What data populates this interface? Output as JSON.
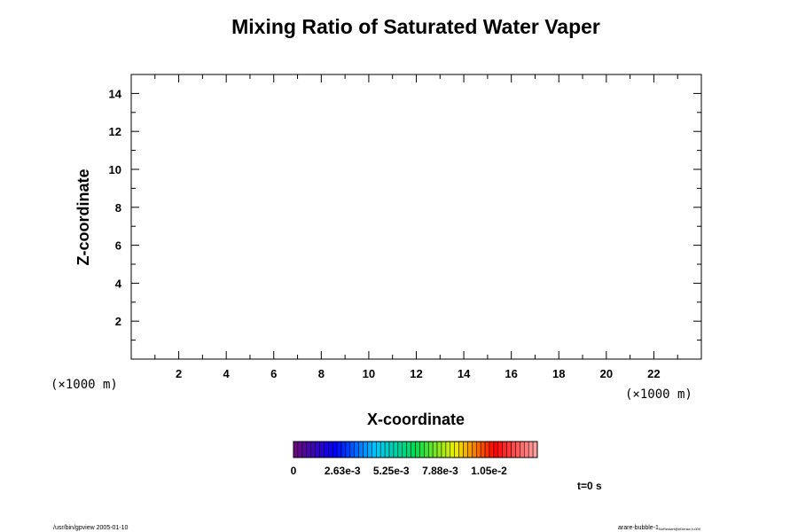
{
  "chart_data": {
    "type": "heatmap",
    "title": "Mixing Ratio of Saturated Water Vaper",
    "xlabel": "X-coordinate",
    "ylabel": "Z-coordinate",
    "x_scale_label": "(×1000 m)",
    "y_scale_label": "(×1000 m)",
    "xlim": [
      0,
      24
    ],
    "ylim": [
      0,
      15
    ],
    "x_ticks": [
      2,
      4,
      6,
      8,
      10,
      12,
      14,
      16,
      18,
      20,
      22
    ],
    "y_ticks": [
      2,
      4,
      6,
      8,
      10,
      12,
      14
    ],
    "x_minor_step": 1,
    "y_minor_step": 1,
    "values": [],
    "colorbar": {
      "tick_labels": [
        "0",
        "2.63e-3",
        "5.25e-3",
        "7.88e-3",
        "1.05e-2"
      ],
      "tick_values": [
        0,
        0.00263,
        0.00525,
        0.00788,
        0.0105
      ],
      "max": 0.0131,
      "levels": 56,
      "colormap": [
        "#6a0a80",
        "#0000ff",
        "#00c8ff",
        "#00dc50",
        "#f0f000",
        "#ff0000",
        "#ffa0a0"
      ]
    },
    "time_label": "t=0 s"
  },
  "footer": {
    "left": "/usr/bin/gpview 2005-01-10",
    "right_main": "arare-bubble-1",
    "right_sub": "NoRestart@eDense,t=000"
  }
}
